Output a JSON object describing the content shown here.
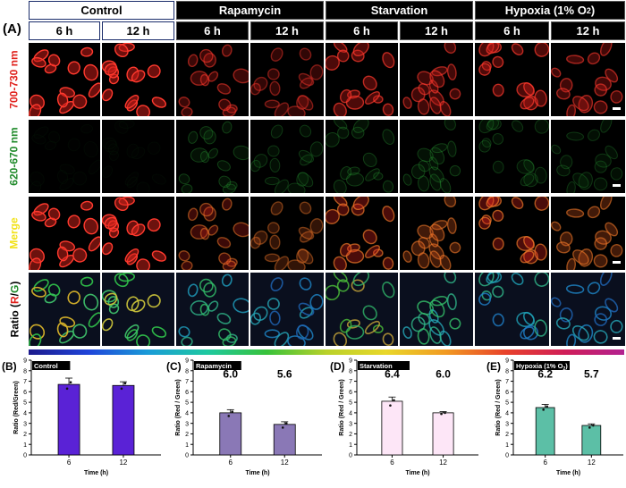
{
  "panel_label": "(A)",
  "groups": [
    {
      "name": "Control",
      "style": "light"
    },
    {
      "name": "Rapamycin",
      "style": "dark"
    },
    {
      "name": "Starvation",
      "style": "dark"
    },
    {
      "name": "Hypoxia (1% O",
      "sub": "2",
      "close": ")",
      "style": "dark"
    }
  ],
  "time_headers": [
    "6 h",
    "12 h",
    "6 h",
    "12 h",
    "6 h",
    "12 h",
    "6 h",
    "12 h"
  ],
  "row_labels": {
    "red": "700-730 nm",
    "green": "620-670 nm",
    "merge": "Merge",
    "ratio_prefix": "Ratio (",
    "ratio_r": "R",
    "ratio_slash": "/",
    "ratio_g": "G",
    "ratio_suffix": ")"
  },
  "colors": {
    "red_channel": "#e0211c",
    "green_channel": "#1f8a2a",
    "merge_label": "#f2e21a",
    "control_bar": "#5a22d6",
    "rapamycin_bar": "#8a78b6",
    "starvation_bar": "#fde6f7",
    "hypoxia_bar": "#5cbfa6"
  },
  "chart_data": [
    {
      "type": "bar",
      "panel": "(B)",
      "title": "Control",
      "categories": [
        "6",
        "12"
      ],
      "values": [
        6.7,
        6.6
      ],
      "errors": [
        0.6,
        0.35
      ],
      "points": [
        [
          6.3,
          6.9
        ],
        [
          6.3,
          6.8
        ]
      ],
      "annotations": [],
      "xlabel": "Time (h)",
      "ylabel": "Ratio (Red/Green)",
      "ylim": [
        0,
        9
      ],
      "yticks": [
        0,
        1,
        2,
        3,
        4,
        5,
        6,
        7,
        8,
        9
      ],
      "color": "#5a22d6"
    },
    {
      "type": "bar",
      "panel": "(C)",
      "title": "Rapamycin",
      "categories": [
        "6",
        "12"
      ],
      "values": [
        4.0,
        2.9
      ],
      "errors": [
        0.3,
        0.25
      ],
      "points": [
        [
          3.7,
          4.1
        ],
        [
          2.6,
          3.0
        ]
      ],
      "annotations": [
        "6.0",
        "5.6"
      ],
      "xlabel": "Time (h)",
      "ylabel": "Ratio (Red / Green)",
      "ylim": [
        0,
        9
      ],
      "yticks": [
        0,
        1,
        2,
        3,
        4,
        5,
        6,
        7,
        8,
        9
      ],
      "color": "#8a78b6"
    },
    {
      "type": "bar",
      "panel": "(D)",
      "title": "Starvation",
      "categories": [
        "6",
        "12"
      ],
      "values": [
        5.1,
        4.0
      ],
      "errors": [
        0.4,
        0.12
      ],
      "points": [
        [
          4.7,
          5.2
        ],
        [
          3.9,
          4.0
        ]
      ],
      "annotations": [
        "6.4",
        "6.0"
      ],
      "xlabel": "Time (h)",
      "ylabel": "Ratio (Red / Green)",
      "ylim": [
        0,
        9
      ],
      "yticks": [
        0,
        1,
        2,
        3,
        4,
        5,
        6,
        7,
        8,
        9
      ],
      "color": "#fde6f7"
    },
    {
      "type": "bar",
      "panel": "(E)",
      "title": "Hypoxia (1% O",
      "title_sub": "2",
      "title_close": ")",
      "categories": [
        "6",
        "12"
      ],
      "values": [
        4.5,
        2.8
      ],
      "errors": [
        0.3,
        0.15
      ],
      "points": [
        [
          4.3,
          4.6
        ],
        [
          2.6,
          2.8
        ]
      ],
      "annotations": [
        "6.2",
        "5.7"
      ],
      "xlabel": "Time (h)",
      "ylabel": "Ratio (Red / Green)",
      "ylim": [
        0,
        9
      ],
      "yticks": [
        0,
        1,
        2,
        3,
        4,
        5,
        6,
        7,
        8,
        9
      ],
      "color": "#5cbfa6"
    }
  ]
}
